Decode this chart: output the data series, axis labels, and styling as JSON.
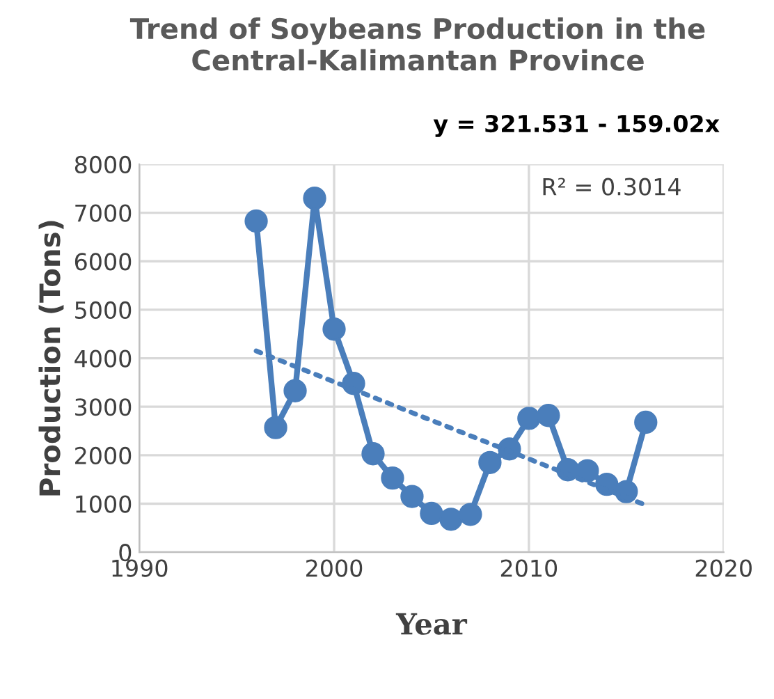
{
  "chart_data": {
    "type": "line",
    "title": "Trend of Soybeans Production in the Central-Kalimantan Province",
    "xlabel": "Year",
    "ylabel": "Production (Tons)",
    "annotations": [
      "y = 321.531 - 159.02x",
      "R² = 0.3014"
    ],
    "xlim": [
      1990,
      2020
    ],
    "xticks": [
      1990,
      2000,
      2010,
      2020
    ],
    "ylim": [
      0,
      8000
    ],
    "yticks": [
      0,
      1000,
      2000,
      3000,
      4000,
      5000,
      6000,
      7000,
      8000
    ],
    "grid": true,
    "legend": false,
    "series": [
      {
        "color": "#4a7ebb",
        "marker": "circle",
        "line_style": "solid",
        "x": [
          1996,
          1997,
          1998,
          1999,
          2000,
          2001,
          2002,
          2003,
          2004,
          2005,
          2006,
          2007,
          2008,
          2009,
          2010,
          2011,
          2012,
          2013,
          2014,
          2015,
          2016
        ],
        "values": [
          6830,
          2570,
          3330,
          7300,
          4600,
          3480,
          2030,
          1530,
          1150,
          800,
          680,
          780,
          1850,
          2130,
          2760,
          2820,
          1700,
          1680,
          1400,
          1250,
          2680
        ]
      },
      {
        "color": "#4a7ebb",
        "marker": "none",
        "line_style": "dotted",
        "x": [
          1996,
          2016
        ],
        "values": [
          4150,
          970
        ]
      }
    ]
  }
}
